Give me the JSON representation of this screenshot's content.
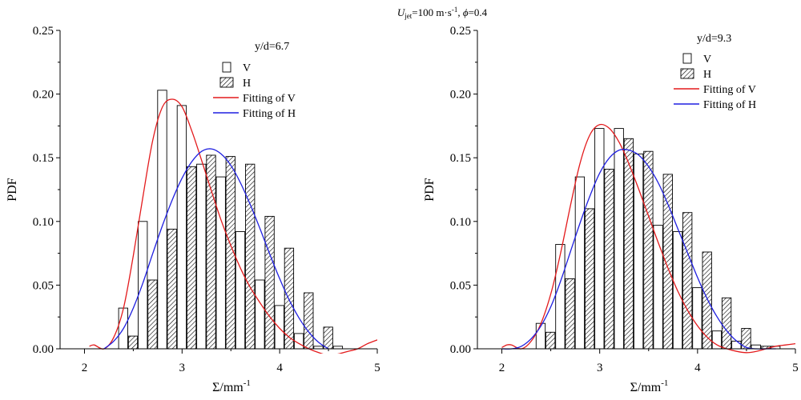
{
  "figure": {
    "title_parts": {
      "u": "U",
      "u_sub": "jet",
      "u_value": "=100 m·s",
      "u_exp": "-1",
      "sep": ",  ",
      "phi": "ϕ",
      "phi_value": "=0.4"
    }
  },
  "chart_data": [
    {
      "type": "bar",
      "title": "y/d=6.7",
      "xlabel": "Σ/mm",
      "xlabel_exp": "-1",
      "ylabel": "PDF",
      "xlim": [
        1.75,
        5.0
      ],
      "ylim": [
        0,
        0.25
      ],
      "xticks": [
        "2",
        "3",
        "4",
        "5"
      ],
      "xtick_values": [
        2,
        3,
        4,
        5
      ],
      "yticks": [
        "0.00",
        "0.05",
        "0.10",
        "0.15",
        "0.20",
        "0.25"
      ],
      "ytick_values": [
        0,
        0.05,
        0.1,
        0.15,
        0.2,
        0.25
      ],
      "legend_position": "top-right",
      "legend": [
        "V",
        "H",
        "Fitting of V",
        "Fitting of H"
      ],
      "categories": [
        2.4,
        2.5,
        2.6,
        2.7,
        2.8,
        2.9,
        3.0,
        3.1,
        3.2,
        3.3,
        3.4,
        3.5,
        3.6,
        3.7,
        3.8,
        3.9,
        4.0,
        4.1,
        4.2,
        4.3,
        4.4,
        4.5,
        4.6,
        4.7
      ],
      "bar_width": 0.1,
      "series": [
        {
          "name": "V",
          "style": "open",
          "x": [
            2.4,
            2.6,
            2.8,
            3.0,
            3.2,
            3.4,
            3.6,
            3.8,
            4.0,
            4.2,
            4.4,
            4.6
          ],
          "values": [
            0.032,
            0.1,
            0.203,
            0.191,
            0.145,
            0.135,
            0.092,
            0.054,
            0.034,
            0.012,
            0.002,
            0.002
          ]
        },
        {
          "name": "H",
          "style": "hatched",
          "x": [
            2.5,
            2.7,
            2.9,
            3.1,
            3.3,
            3.5,
            3.7,
            3.9,
            4.1,
            4.3,
            4.5
          ],
          "values": [
            0.01,
            0.054,
            0.094,
            0.143,
            0.152,
            0.151,
            0.145,
            0.104,
            0.079,
            0.044,
            0.017
          ]
        }
      ],
      "fits": [
        {
          "name": "Fitting of V",
          "color": "#e31a1c",
          "x": [
            2.05,
            2.1,
            2.2,
            2.3,
            2.4,
            2.5,
            2.6,
            2.7,
            2.8,
            2.9,
            3.0,
            3.1,
            3.2,
            3.3,
            3.4,
            3.5,
            3.6,
            3.7,
            3.8,
            3.9,
            4.0,
            4.1,
            4.2,
            4.3,
            4.4,
            4.5,
            4.6,
            4.7,
            4.8,
            4.9,
            5.0
          ],
          "y": [
            0.002,
            0.003,
            0.0,
            0.009,
            0.032,
            0.073,
            0.12,
            0.164,
            0.19,
            0.196,
            0.19,
            0.171,
            0.148,
            0.124,
            0.101,
            0.081,
            0.063,
            0.048,
            0.036,
            0.025,
            0.016,
            0.009,
            0.004,
            0.0,
            -0.003,
            -0.005,
            -0.004,
            -0.002,
            0.0,
            0.004,
            0.007
          ]
        },
        {
          "name": "Fitting of H",
          "color": "#1f1fe0",
          "x": [
            2.2,
            2.3,
            2.4,
            2.5,
            2.6,
            2.7,
            2.8,
            2.9,
            3.0,
            3.1,
            3.2,
            3.3,
            3.4,
            3.5,
            3.6,
            3.7,
            3.8,
            3.9,
            4.0,
            4.1,
            4.2,
            4.3,
            4.4,
            4.5
          ],
          "y": [
            0.0,
            0.006,
            0.016,
            0.032,
            0.052,
            0.075,
            0.097,
            0.117,
            0.134,
            0.147,
            0.155,
            0.157,
            0.153,
            0.144,
            0.13,
            0.113,
            0.094,
            0.074,
            0.055,
            0.038,
            0.024,
            0.013,
            0.005,
            0.0
          ]
        }
      ]
    },
    {
      "type": "bar",
      "title": "y/d=9.3",
      "xlabel": "Σ/mm",
      "xlabel_exp": "-1",
      "ylabel": "PDF",
      "xlim": [
        1.75,
        5.0
      ],
      "ylim": [
        0,
        0.25
      ],
      "xticks": [
        "2",
        "3",
        "4",
        "5"
      ],
      "xtick_values": [
        2,
        3,
        4,
        5
      ],
      "yticks": [
        "0.00",
        "0.05",
        "0.10",
        "0.15",
        "0.20",
        "0.25"
      ],
      "ytick_values": [
        0,
        0.05,
        0.1,
        0.15,
        0.2,
        0.25
      ],
      "legend_position": "top-right",
      "legend": [
        "V",
        "H",
        "Fitting of V",
        "Fitting of H"
      ],
      "categories": [
        2.4,
        2.5,
        2.6,
        2.7,
        2.8,
        2.9,
        3.0,
        3.1,
        3.2,
        3.3,
        3.4,
        3.5,
        3.6,
        3.7,
        3.8,
        3.9,
        4.0,
        4.1,
        4.2,
        4.3,
        4.4,
        4.5,
        4.6,
        4.7,
        4.8
      ],
      "bar_width": 0.1,
      "series": [
        {
          "name": "V",
          "style": "open",
          "x": [
            2.4,
            2.6,
            2.8,
            3.0,
            3.2,
            3.4,
            3.6,
            3.8,
            4.0,
            4.2,
            4.4,
            4.6,
            4.8
          ],
          "values": [
            0.02,
            0.082,
            0.135,
            0.173,
            0.173,
            0.153,
            0.097,
            0.092,
            0.048,
            0.014,
            0.006,
            0.003,
            0.002
          ]
        },
        {
          "name": "H",
          "style": "hatched",
          "x": [
            2.5,
            2.7,
            2.9,
            3.1,
            3.3,
            3.5,
            3.7,
            3.9,
            4.1,
            4.3,
            4.5,
            4.7
          ],
          "values": [
            0.013,
            0.055,
            0.11,
            0.141,
            0.165,
            0.155,
            0.137,
            0.107,
            0.076,
            0.04,
            0.016,
            0.002
          ]
        }
      ],
      "fits": [
        {
          "name": "Fitting of V",
          "color": "#e31a1c",
          "x": [
            2.0,
            2.05,
            2.1,
            2.2,
            2.3,
            2.4,
            2.5,
            2.6,
            2.7,
            2.8,
            2.9,
            3.0,
            3.1,
            3.2,
            3.3,
            3.4,
            3.5,
            3.6,
            3.7,
            3.8,
            3.9,
            4.0,
            4.1,
            4.2,
            4.3,
            4.4,
            4.5,
            4.6,
            4.7,
            4.8,
            4.9,
            5.0
          ],
          "y": [
            0.001,
            0.003,
            0.003,
            0.0,
            0.006,
            0.02,
            0.043,
            0.075,
            0.112,
            0.146,
            0.168,
            0.176,
            0.173,
            0.162,
            0.145,
            0.125,
            0.104,
            0.083,
            0.063,
            0.045,
            0.03,
            0.018,
            0.009,
            0.003,
            0.0,
            -0.002,
            -0.003,
            -0.002,
            0.0,
            0.002,
            0.003,
            0.004
          ]
        },
        {
          "name": "Fitting of H",
          "color": "#1f1fe0",
          "x": [
            2.0,
            2.1,
            2.2,
            2.3,
            2.4,
            2.5,
            2.6,
            2.7,
            2.8,
            2.9,
            3.0,
            3.1,
            3.2,
            3.3,
            3.4,
            3.5,
            3.6,
            3.7,
            3.8,
            3.9,
            4.0,
            4.1,
            4.2,
            4.3,
            4.4,
            4.5,
            4.6,
            4.7,
            4.8
          ],
          "y": [
            0.0,
            0.0,
            0.002,
            0.008,
            0.018,
            0.033,
            0.053,
            0.076,
            0.099,
            0.12,
            0.138,
            0.15,
            0.156,
            0.156,
            0.152,
            0.143,
            0.13,
            0.113,
            0.094,
            0.075,
            0.056,
            0.039,
            0.025,
            0.014,
            0.006,
            0.001,
            0.0,
            0.0,
            0.0
          ]
        }
      ]
    }
  ]
}
